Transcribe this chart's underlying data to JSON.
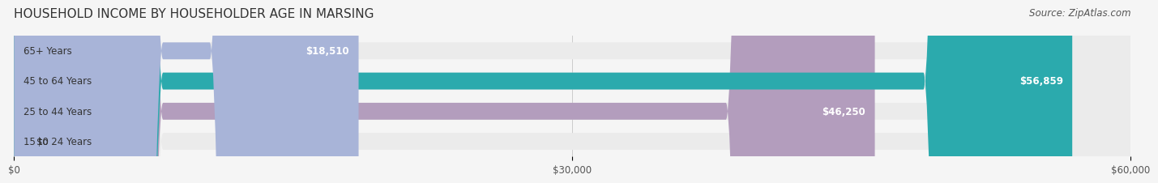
{
  "title": "HOUSEHOLD INCOME BY HOUSEHOLDER AGE IN MARSING",
  "source": "Source: ZipAtlas.com",
  "categories": [
    "15 to 24 Years",
    "25 to 44 Years",
    "45 to 64 Years",
    "65+ Years"
  ],
  "values": [
    0,
    46250,
    56859,
    18510
  ],
  "value_labels": [
    "$0",
    "$46,250",
    "$56,859",
    "$18,510"
  ],
  "bar_colors": [
    "#a8d4e6",
    "#b39dbd",
    "#2baaad",
    "#a8b4d8"
  ],
  "bar_bg_color": "#ebebeb",
  "xlim": [
    0,
    60000
  ],
  "xticks": [
    0,
    30000,
    60000
  ],
  "xtick_labels": [
    "$0",
    "$30,000",
    "$60,000"
  ],
  "title_fontsize": 11,
  "source_fontsize": 8.5,
  "label_fontsize": 8.5,
  "tick_fontsize": 8.5,
  "bar_height": 0.55,
  "background_color": "#f5f5f5"
}
